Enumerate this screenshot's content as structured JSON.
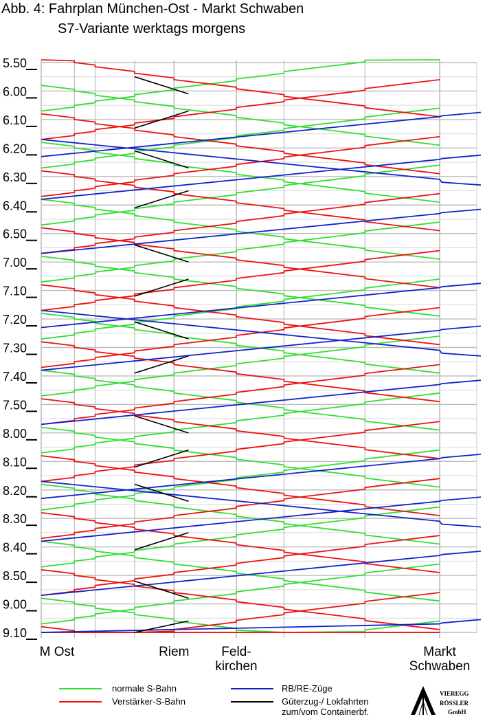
{
  "chart_data": {
    "type": "line",
    "title": "Abb. 4: Fahrplan München-Ost - Markt Schwaben",
    "subtitle": "S7-Variante werktags morgens",
    "xlabel": "",
    "ylabel": "",
    "y_axis": {
      "start_min": 350,
      "end_min": 550,
      "inverted": true,
      "tick_labels": [
        "5.50",
        "6.00",
        "6.10",
        "6.20",
        "6.30",
        "6.40",
        "6.50",
        "7.00",
        "7.10",
        "7.20",
        "7.30",
        "7.40",
        "7.50",
        "8.00",
        "8.10",
        "8.20",
        "8.30",
        "8.40",
        "8.50",
        "9.00",
        "9.10"
      ]
    },
    "stations": [
      {
        "id": "mo",
        "label_lines": [
          "M Ost"
        ],
        "km": 0
      },
      {
        "id": "t1",
        "label_lines": [],
        "km": 1.6
      },
      {
        "id": "t2",
        "label_lines": [],
        "km": 2.6
      },
      {
        "id": "t3",
        "label_lines": [],
        "km": 4.5
      },
      {
        "id": "riem",
        "label_lines": [
          "Riem"
        ],
        "km": 6.4
      },
      {
        "id": "feld",
        "label_lines": [
          "Feld-",
          "kirchen"
        ],
        "km": 9.4
      },
      {
        "id": "t5",
        "label_lines": [],
        "km": 11.7
      },
      {
        "id": "t6",
        "label_lines": [],
        "km": 15.6
      },
      {
        "id": "ms",
        "label_lines": [
          "Markt",
          "Schwaben"
        ],
        "km": 19.2
      }
    ],
    "grid": true,
    "legend": {
      "placement": "bottom",
      "items": [
        {
          "label": "normale S-Bahn",
          "color": "#33dd33"
        },
        {
          "label": "Verstärker-S-Bahn",
          "color": "#ee1111"
        },
        {
          "label": "RB/RE-Züge",
          "color": "#1122cc"
        },
        {
          "label": "Güterzug-/ Lokfahrten zum/vom Containerbf.",
          "color": "#000000"
        }
      ]
    },
    "series": [
      {
        "name": "normale S-Bahn",
        "color": "#33dd33",
        "outbound_departures": [
          358,
          378,
          398,
          418,
          438,
          458,
          478,
          498,
          518,
          538
        ],
        "inbound_departures": [
          346,
          366,
          386,
          406,
          426,
          446,
          466,
          486,
          506,
          526,
          546
        ],
        "run_time_min": 21
      },
      {
        "name": "Verstärker-S-Bahn",
        "color": "#ee1111",
        "outbound_departures": [
          348,
          368,
          388,
          408,
          428,
          448,
          468,
          488,
          508,
          528,
          548
        ],
        "inbound_departures": [
          356,
          376,
          396,
          416,
          436,
          456,
          476,
          496,
          516,
          536
        ],
        "run_time_min": 21
      },
      {
        "name": "RB/RE-Züge",
        "color": "#1122cc",
        "outbound_departures": [
          377,
          437,
          497
        ],
        "inbound_departures": [
          369,
          384,
          403,
          429,
          444,
          463,
          489,
          504,
          523,
          547
        ],
        "run_time_min": 14
      },
      {
        "name": "Güterzug-/ Lokfahrten zum/vom Containerbf.",
        "color": "#000000",
        "outbound_departures": [
          355,
          381,
          414,
          441,
          474,
          498,
          532
        ],
        "inbound_departures": [
          367,
          395,
          426,
          453,
          486,
          515,
          546
        ],
        "run_time_min": 6
      }
    ]
  },
  "logo": {
    "lines": [
      "VIEREGG",
      "RÖSSLER",
      "GmbH"
    ]
  }
}
